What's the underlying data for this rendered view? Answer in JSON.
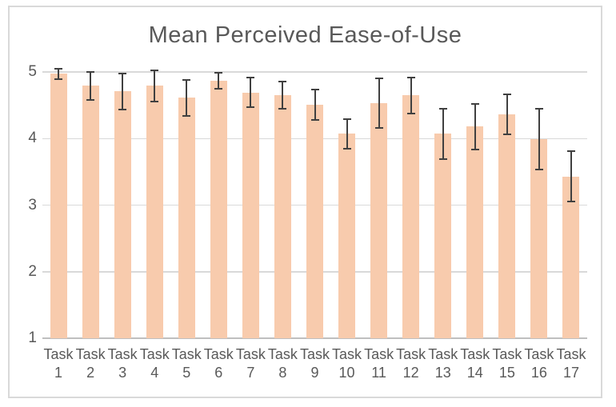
{
  "chart_data": {
    "type": "bar",
    "title": "Mean Perceived Ease-of-Use",
    "categories": [
      "Task 1",
      "Task 2",
      "Task 3",
      "Task 4",
      "Task 5",
      "Task 6",
      "Task 7",
      "Task 8",
      "Task 9",
      "Task 10",
      "Task 11",
      "Task 12",
      "Task 13",
      "Task 14",
      "Task 15",
      "Task 16",
      "Task 17"
    ],
    "values": [
      4.97,
      4.79,
      4.71,
      4.79,
      4.61,
      4.87,
      4.69,
      4.65,
      4.51,
      4.07,
      4.53,
      4.65,
      4.07,
      4.18,
      4.36,
      3.99,
      3.43
    ],
    "error_bars": [
      0.08,
      0.21,
      0.27,
      0.23,
      0.27,
      0.12,
      0.22,
      0.2,
      0.23,
      0.22,
      0.37,
      0.27,
      0.38,
      0.34,
      0.3,
      0.46,
      0.38
    ],
    "xlabel": "",
    "ylabel": "",
    "ylim": [
      1,
      5
    ],
    "yticks": [
      1,
      2,
      3,
      4,
      5
    ],
    "grid": true,
    "legend": "none",
    "colors": {
      "bar_fill": "#F8CBAD",
      "error_bar": "#404040",
      "gridline": "#D9D9D9",
      "axis_line": "#BFBFBF",
      "text": "#595959",
      "frame_border": "#D9D9D9",
      "background": "#FFFFFF"
    }
  }
}
